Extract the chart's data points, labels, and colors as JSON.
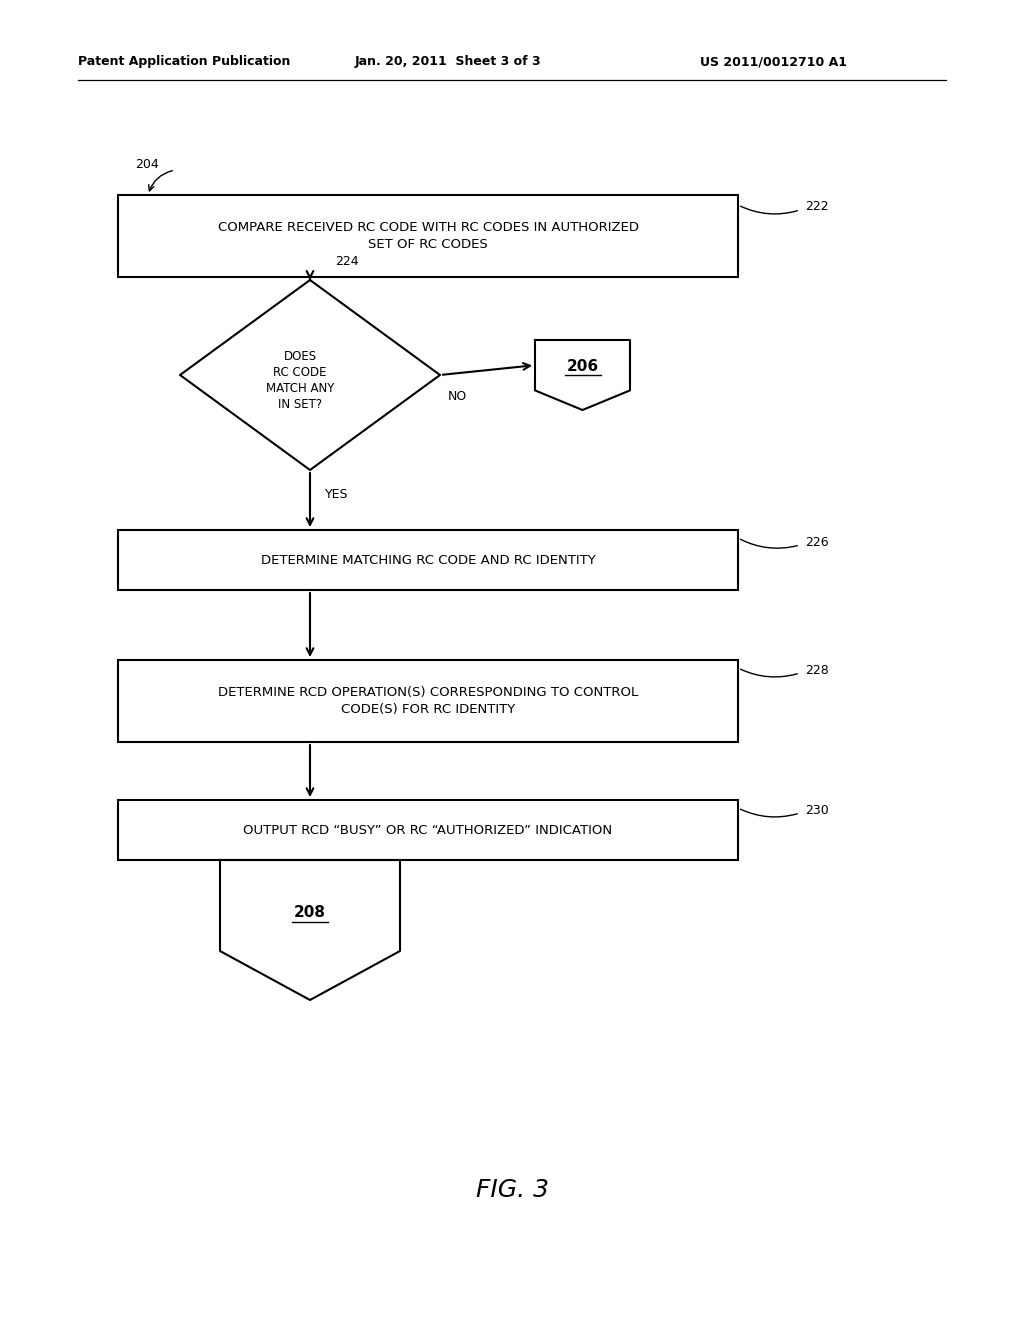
{
  "bg_color": "#ffffff",
  "header_left": "Patent Application Publication",
  "header_mid": "Jan. 20, 2011  Sheet 3 of 3",
  "header_right": "US 2011/0012710 A1",
  "footer_label": "FIG. 3",
  "node_204_label": "204",
  "node_222_label": "222",
  "node_222_text": "COMPARE RECEIVED RC CODE WITH RC CODES IN AUTHORIZED\nSET OF RC CODES",
  "node_224_label": "224",
  "node_224_text": "DOES\nRC CODE\nMATCH ANY\nIN SET?",
  "node_206_label": "206",
  "node_no_label": "NO",
  "node_yes_label": "YES",
  "node_226_label": "226",
  "node_226_text": "DETERMINE MATCHING RC CODE AND RC IDENTITY",
  "node_228_label": "228",
  "node_228_text": "DETERMINE RCD OPERATION(S) CORRESPONDING TO CONTROL\nCODE(S) FOR RC IDENTITY",
  "node_230_label": "230",
  "node_230_text": "OUTPUT RCD “BUSY” OR RC “AUTHORIZED” INDICATION",
  "node_208_label": "208",
  "line_color": "#000000",
  "text_color": "#000000"
}
